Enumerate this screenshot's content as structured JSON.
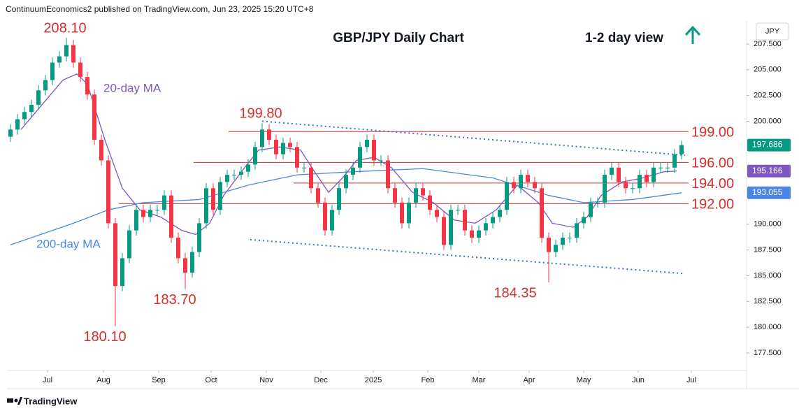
{
  "header": {
    "text": "ContinuumEconomics2 published on TradingView.com, Jun 23, 2025 15:20 UTC+8"
  },
  "footer": {
    "brand": "TradingView"
  },
  "chart_data": {
    "type": "candlestick",
    "title": "GBP/JPY Daily Chart",
    "subtitle": "1-2 day view",
    "y_axis_label": "JPY",
    "xlim": [
      -0.5,
      105.3
    ],
    "xticks": [
      {
        "value": 5.3,
        "label": "Jul"
      },
      {
        "value": 13.3,
        "label": "Aug"
      },
      {
        "value": 21.2,
        "label": "Sep"
      },
      {
        "value": 28.7,
        "label": "Oct"
      },
      {
        "value": 36.6,
        "label": "Nov"
      },
      {
        "value": 44.4,
        "label": "Dec"
      },
      {
        "value": 51.9,
        "label": "2025"
      },
      {
        "value": 59.7,
        "label": "Feb"
      },
      {
        "value": 67.0,
        "label": "Mar"
      },
      {
        "value": 74.2,
        "label": "Apr"
      },
      {
        "value": 82.0,
        "label": "May"
      },
      {
        "value": 89.8,
        "label": "Jun"
      },
      {
        "value": 97.4,
        "label": "Jul"
      }
    ],
    "ylim": [
      175.8,
      209.74
    ],
    "yticks": [
      {
        "value": 207.5,
        "label": "207.500"
      },
      {
        "value": 205,
        "label": "205.000"
      },
      {
        "value": 202.5,
        "label": "202.500"
      },
      {
        "value": 200,
        "label": "200.000"
      },
      {
        "value": 190,
        "label": "190.000"
      },
      {
        "value": 187.5,
        "label": "187.500"
      },
      {
        "value": 185,
        "label": "185.000"
      },
      {
        "value": 182.5,
        "label": "182.500"
      },
      {
        "value": 180,
        "label": "180.000"
      },
      {
        "value": 177.5,
        "label": "177.500"
      }
    ],
    "grid": false,
    "up_color": "#089981",
    "down_color": "#f23645",
    "candles": {
      "open": [
        198.5,
        199.2,
        200.2,
        200.9,
        201.6,
        203.0,
        204.0,
        205.7,
        206.3,
        207.4,
        205.7,
        204.3,
        202.6,
        198.2,
        196.2,
        190.1,
        184.0,
        186.7,
        189.4,
        191.4,
        190.7,
        191.4,
        191.4,
        192.8,
        188.7,
        186.7,
        185.3,
        187.3,
        190.1,
        193.5,
        191.4,
        194.1,
        194.8,
        194.8,
        195.1,
        195.8,
        197.5,
        199.2,
        198.2,
        196.8,
        197.9,
        197.5,
        195.5,
        195.5,
        193.5,
        192.1,
        189.4,
        191.4,
        193.5,
        194.8,
        195.5,
        197.5,
        198.2,
        196.2,
        196.2,
        193.5,
        192.1,
        190.1,
        192.1,
        193.5,
        192.8,
        191.4,
        190.7,
        188.0,
        191.4,
        191.4,
        189.4,
        188.7,
        189.4,
        190.1,
        190.7,
        191.4,
        194.1,
        193.5,
        194.8,
        194.1,
        193.5,
        188.7,
        187.3,
        188.0,
        188.7,
        188.7,
        190.1,
        190.7,
        192.1,
        192.1,
        194.8,
        195.5,
        194.1,
        193.5,
        193.5,
        194.8,
        194.1,
        195.5,
        195.5,
        195.5,
        196.8
      ],
      "high": [
        199.7,
        200.7,
        201.4,
        202.1,
        203.5,
        204.5,
        206.2,
        206.8,
        208.1,
        207.9,
        206.2,
        204.8,
        203.1,
        198.7,
        196.7,
        190.6,
        187.2,
        189.9,
        191.9,
        191.9,
        191.9,
        191.9,
        193.3,
        193.3,
        189.2,
        187.2,
        187.8,
        190.6,
        194.0,
        194.0,
        194.6,
        195.3,
        195.3,
        195.6,
        196.3,
        198.0,
        199.8,
        199.7,
        198.7,
        198.4,
        198.4,
        198.0,
        196.0,
        196.0,
        194.0,
        192.6,
        191.9,
        194.0,
        195.3,
        196.0,
        198.0,
        198.7,
        198.7,
        196.7,
        196.7,
        194.0,
        192.6,
        192.6,
        194.0,
        194.0,
        193.3,
        191.9,
        191.2,
        191.9,
        191.9,
        191.9,
        189.9,
        189.9,
        190.6,
        191.2,
        191.9,
        194.6,
        194.6,
        195.3,
        195.3,
        194.6,
        194.0,
        189.2,
        188.5,
        189.2,
        189.2,
        190.6,
        191.2,
        192.6,
        192.6,
        195.3,
        196.0,
        196.0,
        194.6,
        194.0,
        195.3,
        195.3,
        196.0,
        196.0,
        196.0,
        197.3,
        198.1
      ],
      "low": [
        198.0,
        198.7,
        199.7,
        200.4,
        201.1,
        202.5,
        203.5,
        205.2,
        205.8,
        205.2,
        203.8,
        202.1,
        197.7,
        195.7,
        189.6,
        180.1,
        183.5,
        186.2,
        188.9,
        190.2,
        190.2,
        190.9,
        190.9,
        188.2,
        186.2,
        183.7,
        184.8,
        186.8,
        189.6,
        190.9,
        190.9,
        193.6,
        194.3,
        194.3,
        194.6,
        195.3,
        197.0,
        197.7,
        196.3,
        196.3,
        197.0,
        195.0,
        195.0,
        193.0,
        191.6,
        188.9,
        188.9,
        190.9,
        193.0,
        194.3,
        195.0,
        197.0,
        195.7,
        195.7,
        193.0,
        191.6,
        189.6,
        189.6,
        191.6,
        192.3,
        190.9,
        190.2,
        187.5,
        187.5,
        190.9,
        188.9,
        188.2,
        188.2,
        188.9,
        189.6,
        190.2,
        190.9,
        193.0,
        193.0,
        193.6,
        193.0,
        188.2,
        184.35,
        186.8,
        187.5,
        188.2,
        188.2,
        189.6,
        190.2,
        191.6,
        191.6,
        194.3,
        193.6,
        193.0,
        193.0,
        193.0,
        193.6,
        193.6,
        195.0,
        195.0,
        195.0,
        196.3
      ],
      "close": [
        199.2,
        200.2,
        200.9,
        201.6,
        203.0,
        204.0,
        205.7,
        206.3,
        207.4,
        205.7,
        204.3,
        202.6,
        198.2,
        196.2,
        190.1,
        184.0,
        186.7,
        189.4,
        191.4,
        190.7,
        191.4,
        191.4,
        192.8,
        188.7,
        186.7,
        185.3,
        187.3,
        190.1,
        193.5,
        191.4,
        194.1,
        194.8,
        194.8,
        195.1,
        195.8,
        197.5,
        199.2,
        198.2,
        196.8,
        197.9,
        197.5,
        195.5,
        195.5,
        193.5,
        192.1,
        189.4,
        191.4,
        193.5,
        194.8,
        195.5,
        197.5,
        198.2,
        196.2,
        196.2,
        193.5,
        192.1,
        190.1,
        192.1,
        193.5,
        192.8,
        191.4,
        190.7,
        188.0,
        191.4,
        191.4,
        189.4,
        188.7,
        189.4,
        190.1,
        190.7,
        191.4,
        194.1,
        193.5,
        194.8,
        194.1,
        193.5,
        188.7,
        187.3,
        188.0,
        188.7,
        188.7,
        190.1,
        190.7,
        192.1,
        192.1,
        194.8,
        195.5,
        194.1,
        193.5,
        193.5,
        194.8,
        194.1,
        195.5,
        195.5,
        195.5,
        196.8,
        197.686
      ]
    },
    "series": [
      {
        "name": "20-day MA",
        "color": "#7e57c2",
        "x": [
          1.5,
          4.5,
          7.5,
          9.5,
          11,
          13.5,
          16,
          18.5,
          21.5,
          24.5,
          26.5,
          28.5,
          30.5,
          33.5,
          35.5,
          38.5,
          41.5,
          43.5,
          45.5,
          47.5,
          49.5,
          52,
          54.5,
          57.5,
          60.5,
          63.5,
          66.5,
          69.5,
          72.5,
          75.5,
          77.5,
          80.5,
          82.5,
          84.5,
          87.5,
          90.5,
          93.5,
          95.3
        ],
        "values": [
          199.2,
          201.6,
          204.0,
          204.6,
          203.6,
          198.2,
          193.5,
          191.4,
          190.7,
          189.4,
          189.0,
          190.1,
          192.8,
          195.5,
          197.2,
          197.5,
          197.2,
          195.1,
          193.1,
          194.5,
          196.2,
          196.5,
          195.5,
          193.1,
          192.1,
          190.4,
          190.1,
          191.4,
          193.8,
          192.1,
          190.1,
          189.7,
          190.7,
          192.8,
          194.1,
          194.5,
          195.1,
          195.166
        ]
      },
      {
        "name": "200-day MA",
        "color": "#4a86e8",
        "x": [
          0,
          9,
          14,
          19,
          27,
          34,
          41,
          49,
          59,
          69,
          77,
          82,
          89,
          96
        ],
        "values": [
          188.0,
          190.1,
          191.4,
          192.1,
          192.4,
          193.8,
          194.8,
          195.1,
          195.4,
          194.5,
          192.8,
          192.1,
          192.4,
          193.055
        ]
      }
    ],
    "levels": [
      {
        "value": 199,
        "label": "199.00",
        "from": 31.2
      },
      {
        "value": 196,
        "label": "196.00",
        "from": 26.2
      },
      {
        "value": 194,
        "label": "194.00",
        "from": 40.5
      },
      {
        "value": 192,
        "label": "192.00",
        "from": 15.5
      }
    ],
    "level_end": 97,
    "level_color": "#d32f2f",
    "trendlines": [
      {
        "x": [
          36,
          96.5
        ],
        "values": [
          200.0,
          196.7
        ],
        "color": "#3a6fd8"
      },
      {
        "x": [
          34.3,
          96.5
        ],
        "values": [
          188.5,
          185.2
        ],
        "color": "#3a6fd8"
      }
    ],
    "annotations": [
      {
        "value": 208.1,
        "label": "208.10",
        "x": 7.8,
        "position": "above"
      },
      {
        "value": 180.1,
        "label": "180.10",
        "x": 13.5,
        "position": "below"
      },
      {
        "value": 183.7,
        "label": "183.70",
        "x": 23.5,
        "position": "below"
      },
      {
        "value": 199.8,
        "label": "199.80",
        "x": 35.8,
        "position": "above"
      },
      {
        "value": 184.35,
        "label": "184.35",
        "x": 72.2,
        "position": "below"
      }
    ]
  }
}
